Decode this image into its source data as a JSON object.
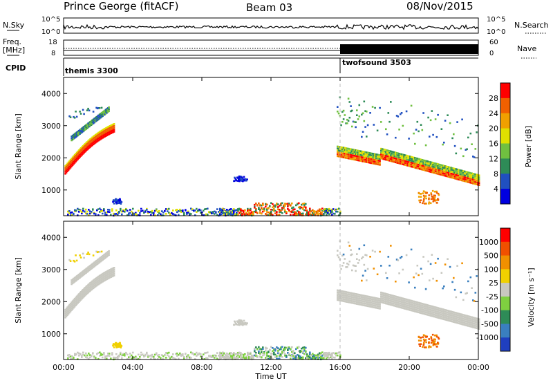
{
  "header": {
    "station": "Prince George (fitACF)",
    "beam": "Beam 03",
    "date": "08/Nov/2015"
  },
  "strips": {
    "nsky_label": "N.Sky",
    "nsky_ticks": [
      "10^5",
      "10^0"
    ],
    "nsearch_label": "N.Search",
    "nsearch_ticks": [
      "10^5",
      "10^0"
    ],
    "freq_label_1": "Freq.",
    "freq_label_2": "[MHz]",
    "freq_ticks": [
      "18",
      "8"
    ],
    "nave_label": "Nave",
    "nave_ticks": [
      "60",
      "0"
    ],
    "cpid_label": "CPID",
    "cpid_segments": [
      {
        "name": "themis 3300",
        "start_hour": 0,
        "end_hour": 16
      },
      {
        "name": "twofsound 3503",
        "start_hour": 16,
        "end_hour": 24
      }
    ]
  },
  "chart_data": [
    {
      "type": "heatmap",
      "panel": "power",
      "ylabel": "Slant Range [km]",
      "xlabel": "",
      "ylim": [
        200,
        4500
      ],
      "yticks": [
        "1000",
        "2000",
        "3000",
        "4000"
      ],
      "colorbar_label": "Power [dB]",
      "colorbar_ticks": [
        "4",
        "8",
        "12",
        "16",
        "20",
        "24",
        "28"
      ],
      "colorbar_colors": [
        "#0000e0",
        "#2050c0",
        "#2e8b57",
        "#70c040",
        "#e0e000",
        "#f0a000",
        "#f06000",
        "#ff0000"
      ]
    },
    {
      "type": "heatmap",
      "panel": "velocity",
      "ylabel": "Slant Range [km]",
      "xlabel": "Time UT",
      "ylim": [
        200,
        4500
      ],
      "yticks": [
        "1000",
        "2000",
        "3000",
        "4000"
      ],
      "xticks": [
        "00:00",
        "04:00",
        "08:00",
        "12:00",
        "16:00",
        "20:00",
        "00:00"
      ],
      "colorbar_label": "Velocity [m s⁻¹]",
      "colorbar_ticks": [
        "1000",
        "500",
        "100",
        "25",
        "-25",
        "-100",
        "-500",
        "-1000"
      ],
      "colorbar_colors": [
        "#1f3fbf",
        "#3a7fbf",
        "#2e8b57",
        "#7fd040",
        "#c8c8c0",
        "#f0d000",
        "#f09000",
        "#f05000",
        "#ff0000"
      ]
    }
  ],
  "echo_features": [
    {
      "desc": "band",
      "t0": 0.0,
      "t1": 2.9,
      "r0": 1500,
      "r1": 3400,
      "kind": "arc"
    },
    {
      "desc": "ground",
      "t0": 0.1,
      "t1": 16.0,
      "r0": 220,
      "r1": 450
    }
  ]
}
